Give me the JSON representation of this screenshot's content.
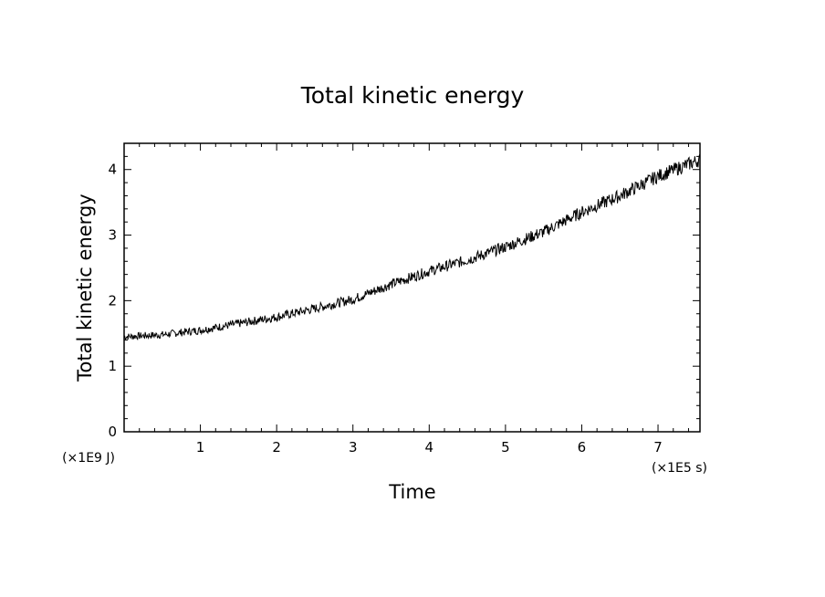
{
  "chart_data": {
    "type": "line",
    "title": "Total kinetic energy",
    "xlabel": "Time",
    "ylabel": "Total kinetic energy",
    "x_unit": "(×1E5 s)",
    "y_unit": "(×1E9 J)",
    "xlim": [
      0,
      7.55
    ],
    "ylim": [
      0,
      4.4
    ],
    "x_ticks": [
      "1",
      "2",
      "3",
      "4",
      "5",
      "6",
      "7"
    ],
    "y_ticks": [
      "0",
      "1",
      "2",
      "3",
      "4"
    ],
    "grid": false,
    "line_color": "#000000",
    "noise_amplitude": 0.09,
    "series": [
      {
        "x": [
          0,
          0.5,
          1.0,
          1.5,
          2.0,
          2.5,
          3.0,
          3.5,
          4.0,
          4.5,
          5.0,
          5.5,
          6.0,
          6.5,
          7.0,
          7.55
        ],
        "y": [
          1.45,
          1.48,
          1.55,
          1.65,
          1.75,
          1.88,
          2.02,
          2.25,
          2.45,
          2.62,
          2.82,
          3.05,
          3.35,
          3.6,
          3.9,
          4.15
        ]
      }
    ]
  }
}
